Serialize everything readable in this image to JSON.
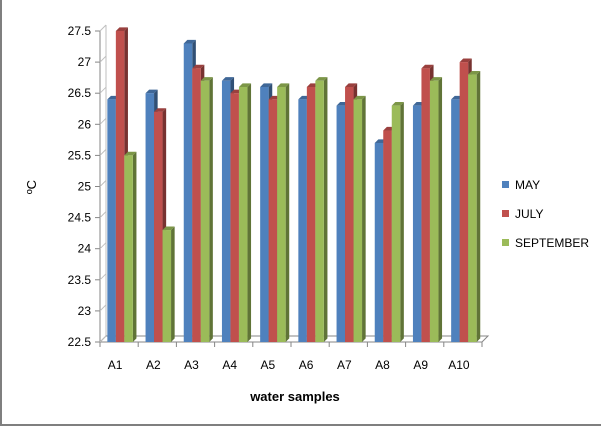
{
  "chart_data": {
    "type": "bar",
    "title": "",
    "xlabel": "water samples",
    "ylabel": "ºC",
    "ylim": [
      22.5,
      27.5
    ],
    "ytick_step": 0.5,
    "yticks": [
      "22.5",
      "23",
      "23.5",
      "24",
      "24.5",
      "25",
      "25.5",
      "26",
      "26.5",
      "27",
      "27.5"
    ],
    "categories": [
      "A1",
      "A2",
      "A3",
      "A4",
      "A5",
      "A6",
      "A7",
      "A8",
      "A9",
      "A10"
    ],
    "series": [
      {
        "name": "MAY",
        "color": "#4f81bd",
        "values": [
          26.4,
          26.5,
          27.3,
          26.7,
          26.6,
          26.4,
          26.3,
          25.7,
          26.3,
          26.4
        ]
      },
      {
        "name": "JULY",
        "color": "#c0504d",
        "values": [
          27.5,
          26.2,
          26.9,
          26.5,
          26.4,
          26.6,
          26.6,
          25.9,
          26.9,
          27.0
        ]
      },
      {
        "name": "SEPTEMBER",
        "color": "#9bbb59",
        "values": [
          25.5,
          24.3,
          26.7,
          26.6,
          26.6,
          26.7,
          26.4,
          26.3,
          26.7,
          26.8
        ]
      }
    ],
    "grid": false,
    "legend": "right"
  }
}
